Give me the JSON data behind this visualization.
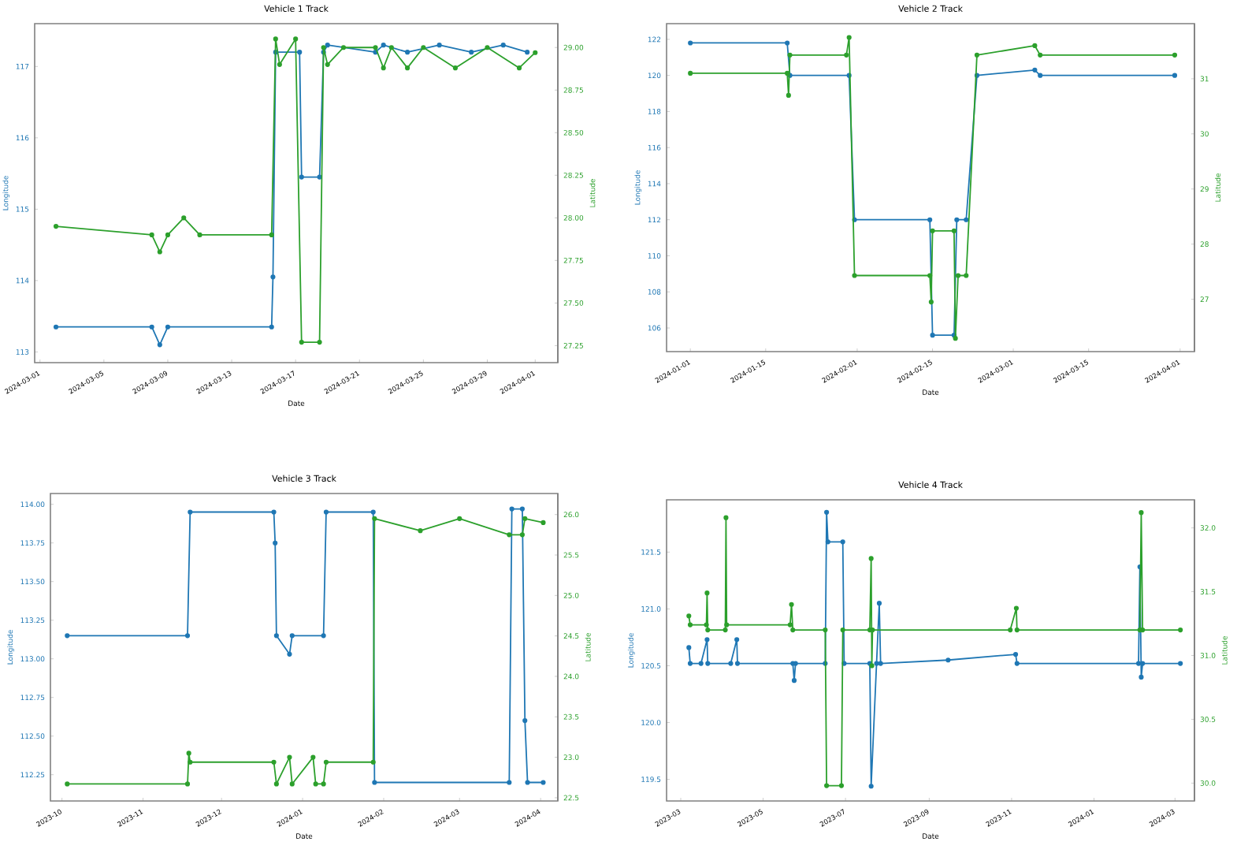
{
  "chart_data": [
    {
      "type": "line",
      "title": "Vehicle 1 Track",
      "xlabel": "Date",
      "ylabel": "Longitude",
      "y2label": "Latitude",
      "marker": "circle",
      "line_style": "solid",
      "xlim": [
        "2024-02-29T16:00",
        "2024-04-02T10:00"
      ],
      "xticks": [
        "2024-03-01",
        "2024-03-05",
        "2024-03-09",
        "2024-03-13",
        "2024-03-17",
        "2024-03-21",
        "2024-03-25",
        "2024-03-29",
        "2024-04-01"
      ],
      "ylim": [
        112.85,
        117.6
      ],
      "yticks": [
        113,
        114,
        115,
        116,
        117
      ],
      "y2lim": [
        27.15,
        29.14
      ],
      "y2ticks": [
        {
          "value": 27.25,
          "label": "27.25"
        },
        {
          "value": 27.5,
          "label": "27.50"
        },
        {
          "value": 27.75,
          "label": "27.75"
        },
        {
          "value": 28.0,
          "label": "28.00"
        },
        {
          "value": 28.25,
          "label": "28.25"
        },
        {
          "value": 28.5,
          "label": "28.50"
        },
        {
          "value": 28.75,
          "label": "28.75"
        },
        {
          "value": 29.0,
          "label": "29.00"
        }
      ],
      "series": [
        {
          "color": "#1f77b4",
          "axis": "y",
          "x": [
            "2024-03-02",
            "2024-03-08",
            "2024-03-08T12:00",
            "2024-03-09",
            "2024-03-15T12:00",
            "2024-03-15T14:00",
            "2024-03-15T18:00",
            "2024-03-17T06:00",
            "2024-03-17T09:00",
            "2024-03-18T12:00",
            "2024-03-18T18:00",
            "2024-03-19",
            "2024-03-22",
            "2024-03-22T12:00",
            "2024-03-24",
            "2024-03-26",
            "2024-03-28",
            "2024-03-30",
            "2024-03-31T12:00"
          ],
          "values": [
            113.35,
            113.35,
            113.1,
            113.35,
            113.35,
            114.05,
            117.2,
            117.2,
            115.45,
            115.45,
            117.2,
            117.3,
            117.2,
            117.3,
            117.2,
            117.3,
            117.2,
            117.3,
            117.2
          ]
        },
        {
          "color": "#2ca02c",
          "axis": "y2",
          "x": [
            "2024-03-02",
            "2024-03-08",
            "2024-03-08T12:00",
            "2024-03-09",
            "2024-03-10",
            "2024-03-11",
            "2024-03-15T12:00",
            "2024-03-15T18:00",
            "2024-03-16",
            "2024-03-17",
            "2024-03-17T09:00",
            "2024-03-18T12:00",
            "2024-03-18T18:00",
            "2024-03-19",
            "2024-03-20",
            "2024-03-22",
            "2024-03-22T12:00",
            "2024-03-23",
            "2024-03-24",
            "2024-03-25",
            "2024-03-27",
            "2024-03-29",
            "2024-03-31",
            "2024-04-01"
          ],
          "values": [
            27.95,
            27.9,
            27.8,
            27.9,
            28.0,
            27.9,
            27.9,
            29.05,
            28.9,
            29.05,
            27.27,
            27.27,
            29.0,
            28.9,
            29.0,
            29.0,
            28.88,
            29.0,
            28.88,
            29.0,
            28.88,
            29.0,
            28.88,
            28.97
          ]
        }
      ]
    },
    {
      "type": "line",
      "title": "Vehicle 2 Track",
      "xlabel": "Date",
      "ylabel": "Longitude",
      "y2label": "Latitude",
      "marker": "circle",
      "line_style": "solid",
      "xlim": [
        "2023-12-27T14:00",
        "2024-04-03T16:00"
      ],
      "xticks": [
        "2024-01-01",
        "2024-01-15",
        "2024-02-01",
        "2024-02-15",
        "2024-03-01",
        "2024-03-15",
        "2024-04-01"
      ],
      "ylim": [
        104.69,
        122.87
      ],
      "yticks": [
        106,
        108,
        110,
        112,
        114,
        116,
        118,
        120,
        122
      ],
      "y2lim": [
        26.05,
        32.0
      ],
      "y2ticks": [
        27,
        28,
        29,
        30,
        31
      ],
      "series": [
        {
          "color": "#1f77b4",
          "axis": "y",
          "x": [
            "2024-01-01",
            "2024-01-19",
            "2024-01-19T12:00",
            "2024-01-30T12:00",
            "2024-01-31T12:00",
            "2024-02-14T12:00",
            "2024-02-15",
            "2024-02-19",
            "2024-02-19T12:00",
            "2024-02-21T06:00",
            "2024-02-23T06:00",
            "2024-03-05",
            "2024-03-06",
            "2024-03-31"
          ],
          "values": [
            121.8,
            121.8,
            120.0,
            120.0,
            112.0,
            112.0,
            105.6,
            105.6,
            112.0,
            112.0,
            120.0,
            120.3,
            120.0,
            120.0
          ]
        },
        {
          "color": "#2ca02c",
          "axis": "y2",
          "x": [
            "2024-01-01",
            "2024-01-19",
            "2024-01-19T06:00",
            "2024-01-19T12:00",
            "2024-01-30",
            "2024-01-30T12:00",
            "2024-01-31T12:00",
            "2024-02-14T12:00",
            "2024-02-14T18:00",
            "2024-02-15",
            "2024-02-19",
            "2024-02-19T06:00",
            "2024-02-19T18:00",
            "2024-02-21T06:00",
            "2024-02-23T06:00",
            "2024-03-05",
            "2024-03-06",
            "2024-03-31"
          ],
          "values": [
            31.1,
            31.1,
            30.7,
            31.43,
            31.43,
            31.75,
            27.43,
            27.43,
            26.95,
            28.24,
            28.24,
            26.29,
            27.43,
            27.43,
            31.43,
            31.6,
            31.43,
            31.43
          ]
        }
      ]
    },
    {
      "type": "line",
      "title": "Vehicle 3 Track",
      "xlabel": "Date",
      "ylabel": "Longitude",
      "y2label": "Latitude",
      "marker": "circle",
      "line_style": "solid",
      "xlim": [
        "2023-09-26T14:00",
        "2024-04-07T14:00"
      ],
      "xticks": [
        "2023-10",
        "2023-11",
        "2023-12",
        "2024-01",
        "2024-02",
        "2024-03",
        "2024-04"
      ],
      "ylim": [
        112.08,
        114.07
      ],
      "yticks": [
        {
          "value": 112.25,
          "label": "112.25"
        },
        {
          "value": 112.5,
          "label": "112.50"
        },
        {
          "value": 112.75,
          "label": "112.75"
        },
        {
          "value": 113.0,
          "label": "113.00"
        },
        {
          "value": 113.25,
          "label": "113.25"
        },
        {
          "value": 113.5,
          "label": "113.50"
        },
        {
          "value": 113.75,
          "label": "113.75"
        },
        {
          "value": 114.0,
          "label": "114.00"
        }
      ],
      "y2lim": [
        22.46,
        26.26
      ],
      "y2ticks": [
        22.5,
        {
          "value": 23.0,
          "label": "23.0"
        },
        23.5,
        {
          "value": 24.0,
          "label": "24.0"
        },
        24.5,
        {
          "value": 25.0,
          "label": "25.0"
        },
        25.5,
        {
          "value": 26.0,
          "label": "26.0"
        }
      ],
      "series": [
        {
          "color": "#1f77b4",
          "axis": "y",
          "x": [
            "2023-10-03",
            "2023-11-18",
            "2023-11-19",
            "2023-12-21",
            "2023-12-21T12:00",
            "2023-12-22",
            "2023-12-27",
            "2023-12-28",
            "2024-01-09",
            "2024-01-10",
            "2024-01-28",
            "2024-01-28T12:00",
            "2024-03-20",
            "2024-03-21",
            "2024-03-25",
            "2024-03-26",
            "2024-03-27",
            "2024-04-02"
          ],
          "values": [
            113.15,
            113.15,
            113.95,
            113.95,
            113.75,
            113.15,
            113.03,
            113.15,
            113.15,
            113.95,
            113.95,
            112.2,
            112.2,
            113.97,
            113.97,
            112.6,
            112.2,
            112.2
          ]
        },
        {
          "color": "#2ca02c",
          "axis": "y2",
          "x": [
            "2023-10-03",
            "2023-11-18",
            "2023-11-18T12:00",
            "2023-11-19",
            "2023-12-21",
            "2023-12-22",
            "2023-12-27",
            "2023-12-28",
            "2024-01-05",
            "2024-01-06",
            "2024-01-09",
            "2024-01-10",
            "2024-01-28",
            "2024-01-28T12:00",
            "2024-02-15",
            "2024-03-01",
            "2024-03-20",
            "2024-03-25",
            "2024-03-26",
            "2024-04-02"
          ],
          "values": [
            22.67,
            22.67,
            23.05,
            22.94,
            22.94,
            22.67,
            23.0,
            22.67,
            23.0,
            22.67,
            22.67,
            22.94,
            22.94,
            25.95,
            25.8,
            25.95,
            25.75,
            25.75,
            25.95,
            25.9
          ]
        }
      ]
    },
    {
      "type": "line",
      "title": "Vehicle 4 Track",
      "xlabel": "Date",
      "ylabel": "Longitude",
      "y2label": "Latitude",
      "marker": "circle",
      "line_style": "solid",
      "xlim": [
        "2023-02-18T12:00",
        "2024-03-15T10:00"
      ],
      "xticks": [
        "2023-03",
        "2023-05",
        "2023-07",
        "2023-09",
        "2023-11",
        "2024-01",
        "2024-03"
      ],
      "ylim": [
        119.31,
        121.96
      ],
      "yticks": [
        119.5,
        {
          "value": 120.0,
          "label": "120.0"
        },
        120.5,
        {
          "value": 121.0,
          "label": "121.0"
        },
        121.5
      ],
      "y2lim": [
        29.86,
        32.22
      ],
      "y2ticks": [
        {
          "value": 30.0,
          "label": "30.0"
        },
        30.5,
        {
          "value": 31.0,
          "label": "31.0"
        },
        31.5,
        {
          "value": 32.0,
          "label": "32.0"
        }
      ],
      "series": [
        {
          "color": "#1f77b4",
          "axis": "y",
          "x": [
            "2023-03-07",
            "2023-03-08",
            "2023-03-16",
            "2023-03-20T12:00",
            "2023-03-21",
            "2023-04-07",
            "2023-04-11T12:00",
            "2023-04-12",
            "2023-05-23",
            "2023-05-24",
            "2023-05-25",
            "2023-06-16",
            "2023-06-17",
            "2023-06-18",
            "2023-06-29",
            "2023-06-30",
            "2023-07-19",
            "2023-07-20",
            "2023-07-24",
            "2023-07-26",
            "2023-07-27",
            "2023-09-15",
            "2023-11-04",
            "2023-11-05",
            "2024-02-03",
            "2024-02-04",
            "2024-02-05",
            "2024-02-06",
            "2024-03-05"
          ],
          "values": [
            120.66,
            120.52,
            120.52,
            120.73,
            120.52,
            120.52,
            120.73,
            120.52,
            120.52,
            120.37,
            120.52,
            120.52,
            121.85,
            121.59,
            121.59,
            120.52,
            120.52,
            119.44,
            120.52,
            121.05,
            120.52,
            120.55,
            120.6,
            120.52,
            120.52,
            121.37,
            120.4,
            120.52,
            120.52
          ]
        },
        {
          "color": "#2ca02c",
          "axis": "y2",
          "x": [
            "2023-03-07",
            "2023-03-08",
            "2023-03-20",
            "2023-03-20T12:00",
            "2023-03-21",
            "2023-04-03",
            "2023-04-03T12:00",
            "2023-04-04",
            "2023-05-21",
            "2023-05-22",
            "2023-05-23",
            "2023-06-16",
            "2023-06-17",
            "2023-06-28",
            "2023-06-29",
            "2023-07-19",
            "2023-07-20",
            "2023-07-20T12:00",
            "2023-07-21",
            "2023-10-31",
            "2023-11-04T12:00",
            "2023-11-05",
            "2024-02-04",
            "2024-02-05",
            "2024-02-06",
            "2024-03-05"
          ],
          "values": [
            31.31,
            31.24,
            31.24,
            31.49,
            31.2,
            31.2,
            32.08,
            31.24,
            31.24,
            31.4,
            31.2,
            31.2,
            29.98,
            29.98,
            31.2,
            31.2,
            31.76,
            30.92,
            31.2,
            31.2,
            31.37,
            31.2,
            31.2,
            32.12,
            31.2,
            31.2
          ]
        }
      ]
    }
  ]
}
